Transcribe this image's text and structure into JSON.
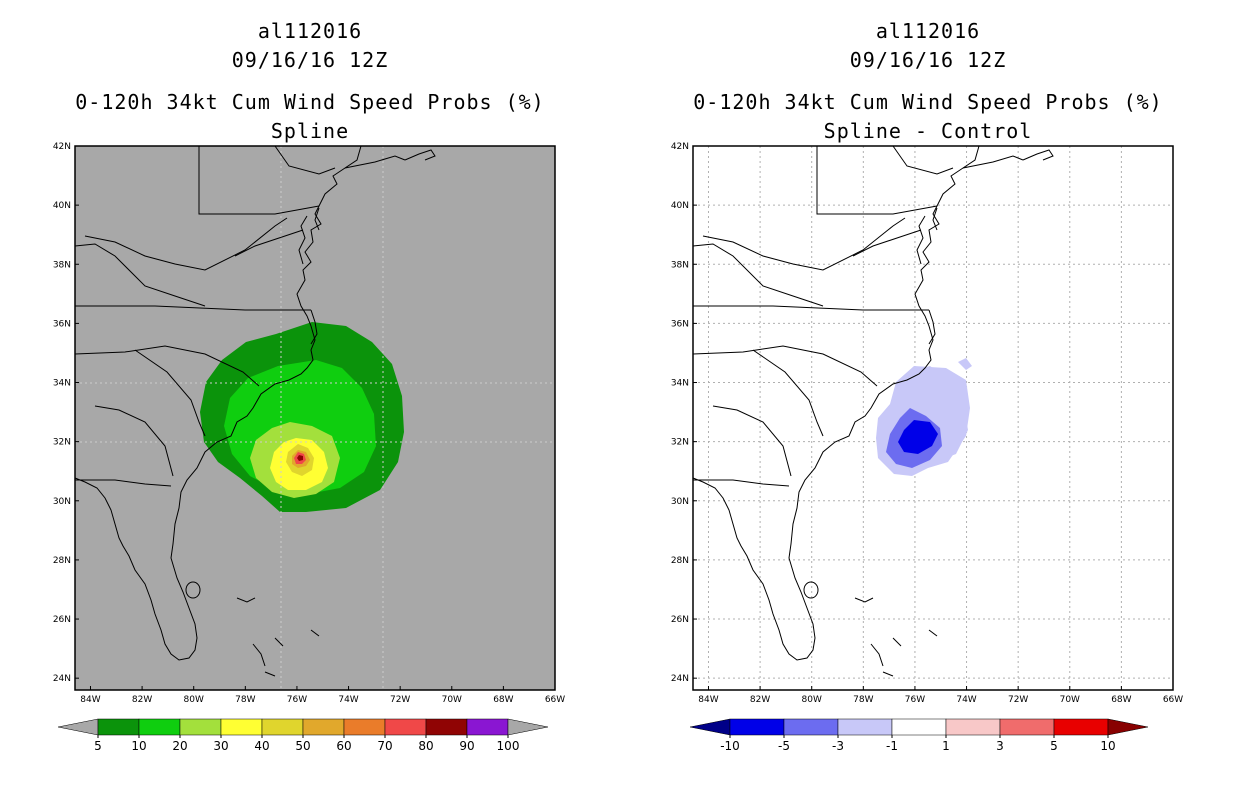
{
  "left": {
    "storm_id": "al112016",
    "datetime": "09/16/16 12Z",
    "product": "0-120h 34kt Cum Wind Speed Probs (%)",
    "subtitle": "Spline",
    "background": "#a8a8a8",
    "colorbar": {
      "labels": [
        "5",
        "10",
        "20",
        "30",
        "40",
        "50",
        "60",
        "70",
        "80",
        "90",
        "100"
      ],
      "colors": [
        "#0b930b",
        "#0fce0f",
        "#a3e03c",
        "#ffff33",
        "#e0d52d",
        "#e1a82c",
        "#ea7c2a",
        "#f04848",
        "#900404",
        "#8a16d2"
      ],
      "under_color": "#a8a8a8",
      "over_color": "#a8a8a8"
    }
  },
  "right": {
    "storm_id": "al112016",
    "datetime": "09/16/16 12Z",
    "product": "0-120h 34kt Cum Wind Speed Probs (%)",
    "subtitle": "Spline - Control",
    "background": "#ffffff",
    "colorbar": {
      "labels": [
        "-10",
        "-5",
        "-3",
        "-1",
        "1",
        "3",
        "5",
        "10"
      ],
      "colors": [
        "#0000e8",
        "#6c6cf0",
        "#c8c8f8",
        "#ffffff",
        "#f8c8c8",
        "#f06c6c",
        "#e80000"
      ],
      "under_color": "#000088",
      "over_color": "#880000"
    }
  },
  "axes": {
    "lat_labels": [
      "42N",
      "40N",
      "38N",
      "36N",
      "34N",
      "32N",
      "30N",
      "28N",
      "26N",
      "24N"
    ],
    "lon_labels": [
      "84W",
      "82W",
      "80W",
      "78W",
      "76W",
      "74W",
      "72W",
      "70W",
      "68W",
      "66W"
    ],
    "lat_range": [
      23.6,
      42.0
    ],
    "lon_range": [
      -84.6,
      -66.0
    ]
  }
}
